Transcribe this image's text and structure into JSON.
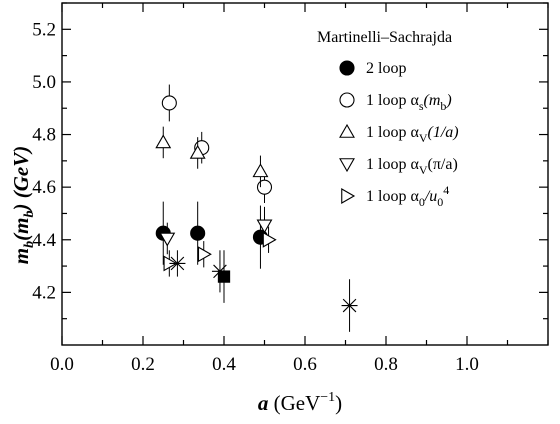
{
  "chart_data": {
    "type": "scatter",
    "title": "",
    "annotation": "Martinelli–Sachrajda",
    "xlabel_main": "a",
    "xlabel_unit": " (GeV",
    "xlabel_exp": "−1",
    "xlabel_close": ")",
    "ylabel": "m_b(m_b) (GeV)",
    "ylabel_parts": {
      "m": "m",
      "sub1": "b",
      "open": "(m",
      "sub2": "b",
      "close": ")",
      "unit": " (GeV)"
    },
    "xlim": [
      0.0,
      1.2
    ],
    "ylim": [
      4.0,
      5.3
    ],
    "xticks": [
      0.0,
      0.2,
      0.4,
      0.6,
      0.8,
      1.0
    ],
    "xtick_labels": [
      "0.0",
      "0.2",
      "0.4",
      "0.6",
      "0.8",
      "1.0"
    ],
    "yticks": [
      4.2,
      4.4,
      4.6,
      4.8,
      5.0,
      5.2
    ],
    "ytick_labels": [
      "4.2",
      "4.4",
      "4.6",
      "4.8",
      "5.0",
      "5.2"
    ],
    "grid": false,
    "legend_position": "top-right",
    "series": [
      {
        "name": "2 loop",
        "marker": "filled-circle",
        "in_legend": true,
        "legend_parts": [
          {
            "t": "2 loop"
          }
        ],
        "points": [
          {
            "x": 0.25,
            "y": 4.425,
            "err": 0.12
          },
          {
            "x": 0.335,
            "y": 4.425,
            "err": 0.12
          },
          {
            "x": 0.49,
            "y": 4.41,
            "err": 0.12
          }
        ]
      },
      {
        "name": "1 loop αs(mb)",
        "marker": "open-circle",
        "in_legend": true,
        "legend_parts": [
          {
            "t": "1 loop α"
          },
          {
            "t": "s",
            "sub": true
          },
          {
            "t": "(m",
            "it": true
          },
          {
            "t": "b",
            "sub": true
          },
          {
            "t": ")",
            "it": true
          }
        ],
        "points": [
          {
            "x": 0.265,
            "y": 4.92,
            "err": 0.07
          },
          {
            "x": 0.345,
            "y": 4.75,
            "err": 0.06
          },
          {
            "x": 0.5,
            "y": 4.6,
            "err": 0.06
          }
        ]
      },
      {
        "name": "1 loop αV(1/a)",
        "marker": "triangle-up",
        "in_legend": true,
        "legend_parts": [
          {
            "t": "1 loop α"
          },
          {
            "t": "V",
            "sub": true
          },
          {
            "t": "(1/a)",
            "it": true
          }
        ],
        "points": [
          {
            "x": 0.25,
            "y": 4.77,
            "err": 0.06
          },
          {
            "x": 0.335,
            "y": 4.73,
            "err": 0.06
          },
          {
            "x": 0.49,
            "y": 4.66,
            "err": 0.06
          }
        ]
      },
      {
        "name": "1 loop αV(π/a)",
        "marker": "triangle-down",
        "in_legend": true,
        "legend_parts": [
          {
            "t": "1 loop α"
          },
          {
            "t": "V",
            "sub": true
          },
          {
            "t": "(π/a)"
          }
        ],
        "points": [
          {
            "x": 0.26,
            "y": 4.405,
            "err": 0.06
          },
          {
            "x": 0.5,
            "y": 4.455,
            "err": 0.07
          }
        ]
      },
      {
        "name": "1 loop α0/u04",
        "marker": "triangle-right",
        "in_legend": true,
        "legend_parts": [
          {
            "t": "1 loop α"
          },
          {
            "t": "0",
            "sub": true
          },
          {
            "t": "/u",
            "it": true
          },
          {
            "t": "0",
            "sub": true
          },
          {
            "t": "4",
            "sup": true
          }
        ],
        "points": [
          {
            "x": 0.265,
            "y": 4.31,
            "err": 0.05
          },
          {
            "x": 0.35,
            "y": 4.345,
            "err": 0.05
          },
          {
            "x": 0.51,
            "y": 4.4,
            "err": 0.05
          }
        ]
      },
      {
        "name": "",
        "marker": "star",
        "in_legend": false,
        "points": [
          {
            "x": 0.285,
            "y": 4.31,
            "err": 0.05
          },
          {
            "x": 0.39,
            "y": 4.28,
            "err": 0.08
          },
          {
            "x": 0.71,
            "y": 4.15,
            "err": 0.1
          }
        ]
      },
      {
        "name": "",
        "marker": "filled-square",
        "in_legend": false,
        "points": [
          {
            "x": 0.4,
            "y": 4.26,
            "err": 0.1
          }
        ]
      }
    ]
  }
}
